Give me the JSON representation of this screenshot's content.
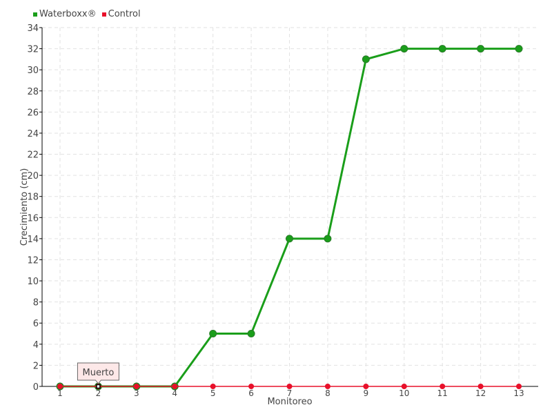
{
  "chart_data": {
    "type": "line",
    "xlabel": "Monitoreo",
    "ylabel": "Crecimiento (cm)",
    "categories": [
      "1",
      "2",
      "3",
      "4",
      "5",
      "6",
      "7",
      "8",
      "9",
      "10",
      "11",
      "12",
      "13"
    ],
    "ylim": [
      0,
      34
    ],
    "yticks": [
      0,
      2,
      4,
      6,
      8,
      10,
      12,
      14,
      16,
      18,
      20,
      22,
      24,
      26,
      28,
      30,
      32,
      34
    ],
    "grid": true,
    "legend_placement": "top-left",
    "series": [
      {
        "name": "Waterboxx®",
        "color": "#1a9e1a",
        "values": [
          0,
          0,
          0,
          0,
          5,
          5,
          14,
          14,
          31,
          32,
          32,
          32,
          32
        ]
      },
      {
        "name": "Control",
        "color": "#e8102a",
        "values": [
          0,
          0,
          0,
          0,
          0,
          0,
          0,
          0,
          0,
          0,
          0,
          0,
          0
        ]
      }
    ],
    "annotation": {
      "text": "Muerto",
      "category": "2"
    }
  }
}
